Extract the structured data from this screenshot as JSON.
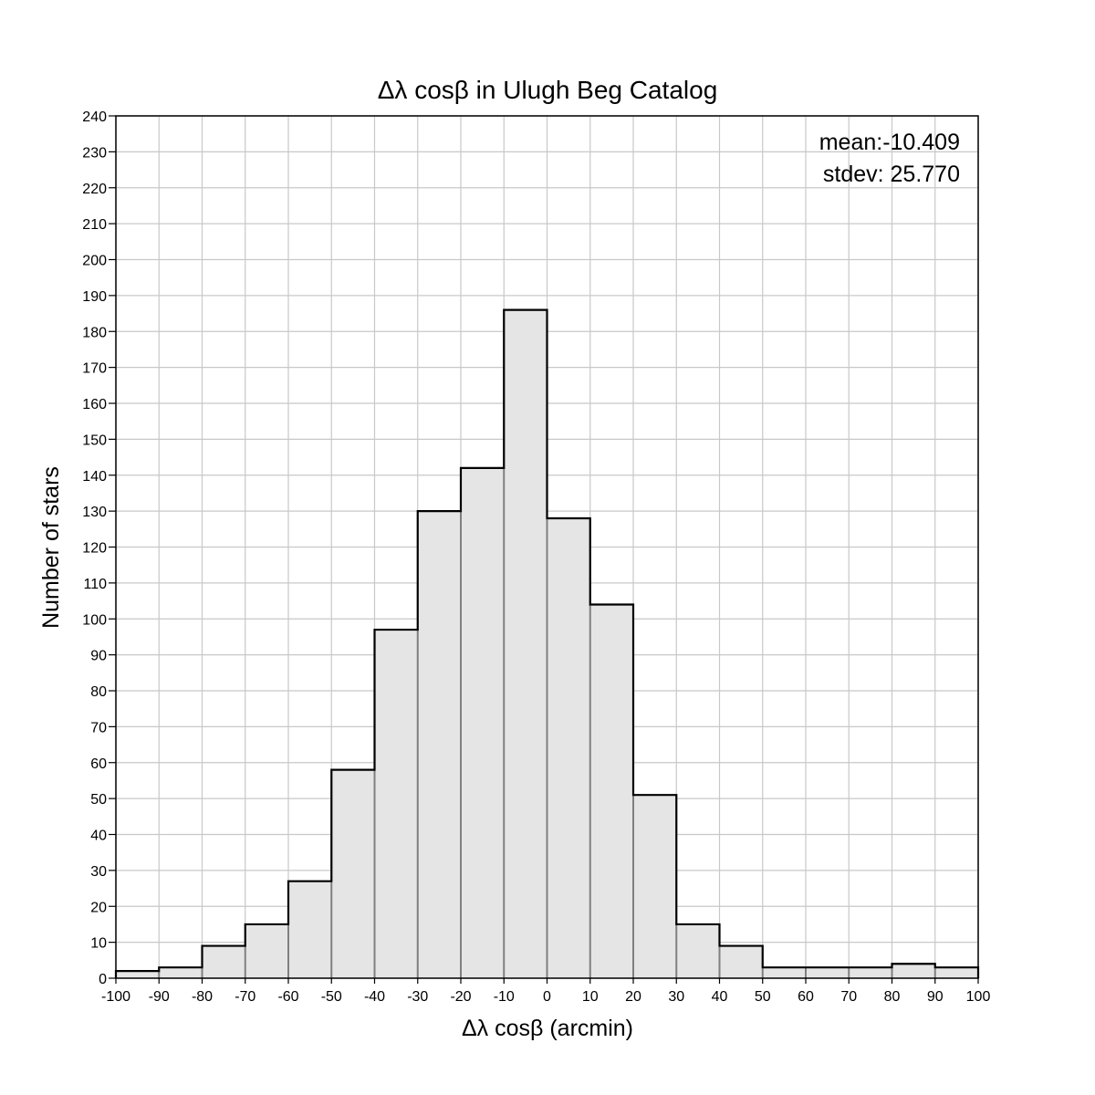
{
  "chart_data": {
    "type": "bar",
    "title": "Δλ cosβ in Ulugh Beg Catalog",
    "xlabel": "Δλ cosβ (arcmin)",
    "ylabel": "Number of stars",
    "xlim": [
      -100,
      100
    ],
    "ylim": [
      0,
      240
    ],
    "bin_width": 10,
    "bin_edges": [
      -100,
      -90,
      -80,
      -70,
      -60,
      -50,
      -40,
      -30,
      -20,
      -10,
      0,
      10,
      20,
      30,
      40,
      50,
      60,
      70,
      80,
      90,
      100
    ],
    "values": [
      2,
      3,
      9,
      15,
      27,
      58,
      97,
      130,
      142,
      186,
      128,
      104,
      51,
      15,
      9,
      3,
      3,
      3,
      4,
      3
    ],
    "x_ticks": [
      -100,
      -90,
      -80,
      -70,
      -60,
      -50,
      -40,
      -30,
      -20,
      -10,
      0,
      10,
      20,
      30,
      40,
      50,
      60,
      70,
      80,
      90,
      100
    ],
    "y_ticks": [
      0,
      10,
      20,
      30,
      40,
      50,
      60,
      70,
      80,
      90,
      100,
      110,
      120,
      130,
      140,
      150,
      160,
      170,
      180,
      190,
      200,
      210,
      220,
      230,
      240
    ],
    "grid": true,
    "annotations": {
      "mean_label": "mean:-10.409",
      "stdev_label": "stdev: 25.770",
      "placement": "top-right"
    },
    "colors": {
      "bar_fill": "#e5e5e5",
      "bar_edge": "#000000",
      "inner_edge": "#808080",
      "grid": "#c8c8c8"
    }
  }
}
